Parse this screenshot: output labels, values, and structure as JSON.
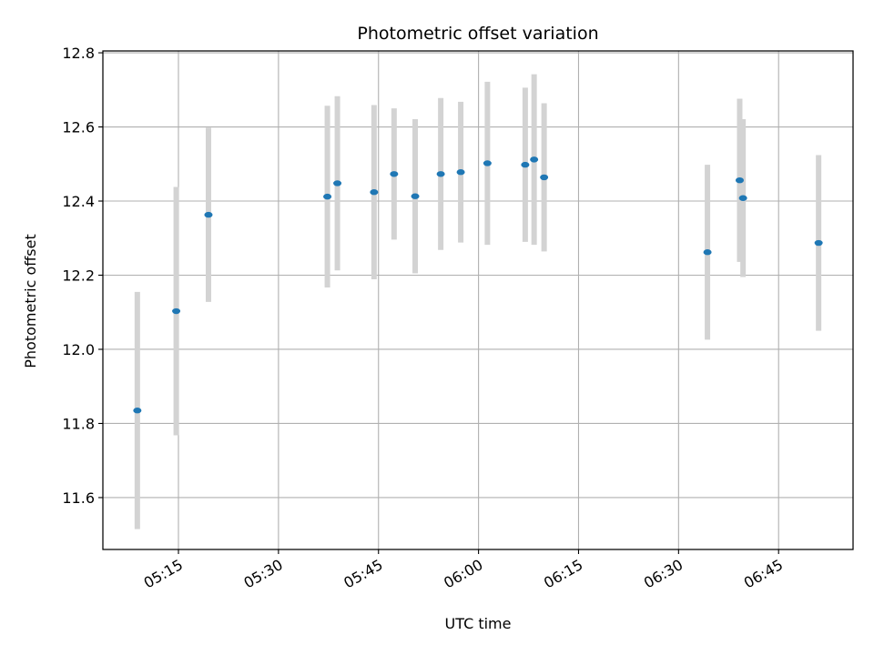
{
  "chart_data": {
    "type": "scatter",
    "title": "Photometric offset variation",
    "xlabel": "UTC time",
    "ylabel": "Photometric offset",
    "x_axis": "time",
    "x_ticks": [
      "05:15",
      "05:30",
      "05:45",
      "06:00",
      "06:15",
      "06:30",
      "06:45"
    ],
    "xlim": [
      "05:03:40",
      "06:56:10"
    ],
    "y_ticks": [
      "11.6",
      "11.8",
      "12.0",
      "12.2",
      "12.4",
      "12.6",
      "12.8"
    ],
    "ylim": [
      11.46,
      12.805
    ],
    "grid": true,
    "point_color": "#1f77b4",
    "error_color": "#d3d3d3",
    "points": [
      {
        "x": "05:08:50",
        "y": 11.835,
        "err": 0.32
      },
      {
        "x": "05:14:40",
        "y": 12.103,
        "err": 0.335
      },
      {
        "x": "05:19:30",
        "y": 12.363,
        "err": 0.235
      },
      {
        "x": "05:37:20",
        "y": 12.412,
        "err": 0.245
      },
      {
        "x": "05:38:50",
        "y": 12.448,
        "err": 0.235
      },
      {
        "x": "05:44:20",
        "y": 12.424,
        "err": 0.235
      },
      {
        "x": "05:47:20",
        "y": 12.473,
        "err": 0.177
      },
      {
        "x": "05:50:30",
        "y": 12.413,
        "err": 0.208
      },
      {
        "x": "05:54:20",
        "y": 12.473,
        "err": 0.205
      },
      {
        "x": "05:57:20",
        "y": 12.478,
        "err": 0.19
      },
      {
        "x": "06:01:20",
        "y": 12.502,
        "err": 0.22
      },
      {
        "x": "06:07:00",
        "y": 12.498,
        "err": 0.208
      },
      {
        "x": "06:08:20",
        "y": 12.512,
        "err": 0.23
      },
      {
        "x": "06:09:50",
        "y": 12.464,
        "err": 0.2
      },
      {
        "x": "06:34:20",
        "y": 12.262,
        "err": 0.236
      },
      {
        "x": "06:39:10",
        "y": 12.456,
        "err": 0.22
      },
      {
        "x": "06:39:40",
        "y": 12.408,
        "err": 0.213
      },
      {
        "x": "06:51:00",
        "y": 12.287,
        "err": 0.237
      }
    ]
  }
}
